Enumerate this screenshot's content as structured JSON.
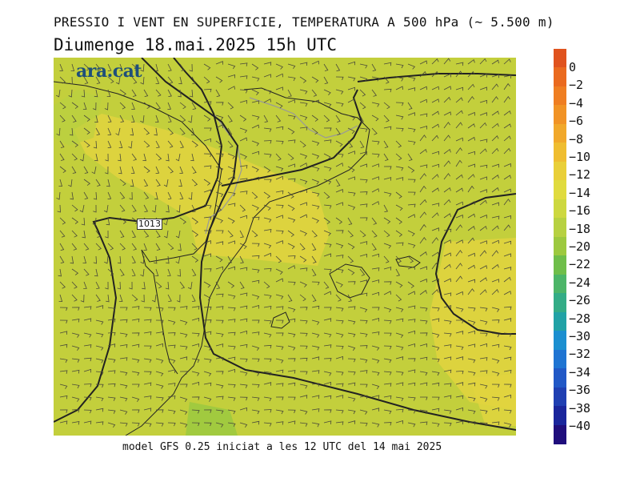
{
  "header": {
    "title": "PRESSIO I VENT EN SUPERFICIE, TEMPERATURA A 500 hPa (~ 5.500 m)",
    "datetime": "Diumenge  18.mai.2025  15h UTC"
  },
  "logo": {
    "text": "ara.cat"
  },
  "footer": {
    "model_text": "model GFS 0.25 iniciat a les 12 UTC del 14 mai 2025"
  },
  "map": {
    "isobar_label": "1013",
    "fill_colors": {
      "base": "#c3cf3c",
      "warm": "#e2d43e",
      "cool": "#9dc93f"
    }
  },
  "colorbar": {
    "labels": [
      "0",
      "−2",
      "−4",
      "−6",
      "−8",
      "−10",
      "−12",
      "−14",
      "−16",
      "−18",
      "−20",
      "−22",
      "−24",
      "−26",
      "−28",
      "−30",
      "−32",
      "−34",
      "−36",
      "−38",
      "−40"
    ],
    "colors": [
      "#e0531e",
      "#ea6a1f",
      "#ef7e22",
      "#f19325",
      "#f1a82a",
      "#efbd30",
      "#e9cf38",
      "#e0db3e",
      "#cdd83f",
      "#b7d141",
      "#9dc93f",
      "#6fbe4a",
      "#4cb568",
      "#33ac86",
      "#21a2a6",
      "#1b8fd0",
      "#1f74d2",
      "#2158c6",
      "#1f3fb2",
      "#1a269c",
      "#1f0e7c"
    ]
  }
}
